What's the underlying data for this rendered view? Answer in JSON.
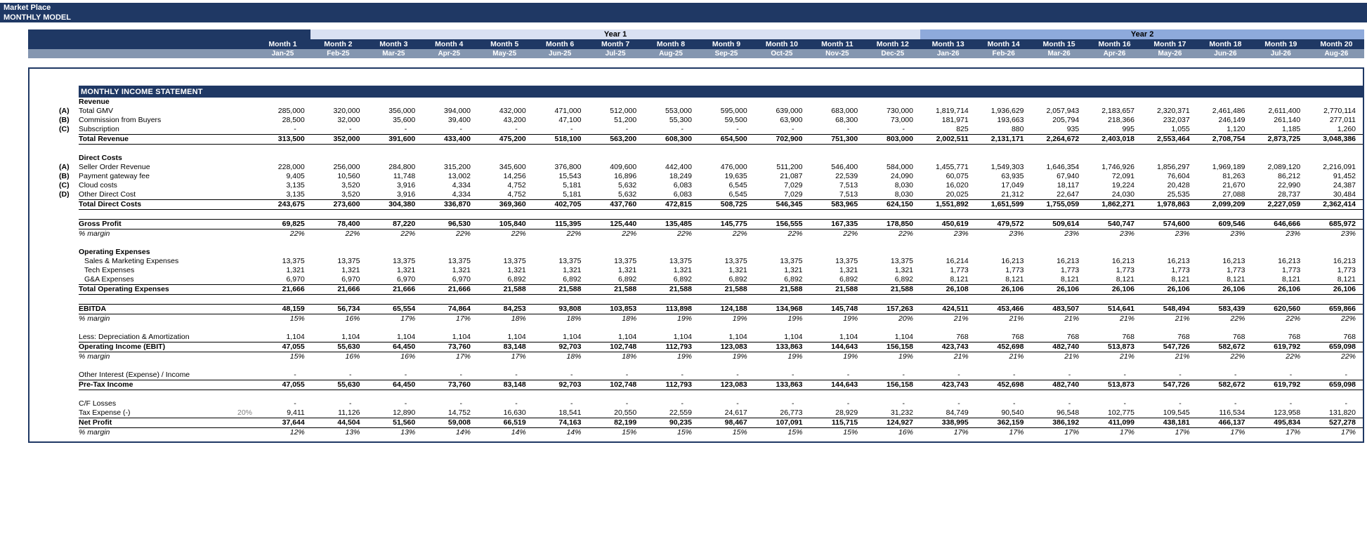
{
  "title": {
    "line1": "Market Place",
    "line2": "MONTHLY MODEL"
  },
  "colors": {
    "navy_header": "#1F3864",
    "year1_band": "#D9E1F2",
    "year2_band": "#8EAADB",
    "date_band": "#8496B0",
    "tax_rate_text": "#808080",
    "body_text": "#000000"
  },
  "header": {
    "year1_label": "Year 1",
    "year2_label": "Year 2",
    "months": [
      "Month 1",
      "Month 2",
      "Month 3",
      "Month 4",
      "Month 5",
      "Month 6",
      "Month 7",
      "Month 8",
      "Month 9",
      "Month 10",
      "Month 11",
      "Month 12",
      "Month 13",
      "Month 14",
      "Month 15",
      "Month 16",
      "Month 17",
      "Month 18",
      "Month 19",
      "Month 20"
    ],
    "dates": [
      "Jan-25",
      "Feb-25",
      "Mar-25",
      "Apr-25",
      "May-25",
      "Jun-25",
      "Jul-25",
      "Aug-25",
      "Sep-25",
      "Oct-25",
      "Nov-25",
      "Dec-25",
      "Jan-26",
      "Feb-26",
      "Mar-26",
      "Apr-26",
      "May-26",
      "Jun-26",
      "Jul-26",
      "Aug-26"
    ]
  },
  "statement": {
    "title": "MONTHLY INCOME STATEMENT",
    "rows": [
      {
        "type": "section",
        "label": "Revenue"
      },
      {
        "type": "item",
        "prefix": "(A)",
        "label": "Total GMV",
        "values": [
          "285,000",
          "320,000",
          "356,000",
          "394,000",
          "432,000",
          "471,000",
          "512,000",
          "553,000",
          "595,000",
          "639,000",
          "683,000",
          "730,000",
          "1,819,714",
          "1,936,629",
          "2,057,943",
          "2,183,657",
          "2,320,371",
          "2,461,486",
          "2,611,400",
          "2,770,114"
        ]
      },
      {
        "type": "item",
        "prefix": "(B)",
        "label": "Commission from Buyers",
        "values": [
          "28,500",
          "32,000",
          "35,600",
          "39,400",
          "43,200",
          "47,100",
          "51,200",
          "55,300",
          "59,500",
          "63,900",
          "68,300",
          "73,000",
          "181,971",
          "193,663",
          "205,794",
          "218,366",
          "232,037",
          "246,149",
          "261,140",
          "277,011"
        ]
      },
      {
        "type": "item",
        "prefix": "(C)",
        "label": "Subscription",
        "underline": true,
        "values": [
          "-",
          "-",
          "-",
          "-",
          "-",
          "-",
          "-",
          "-",
          "-",
          "-",
          "-",
          "-",
          "825",
          "880",
          "935",
          "995",
          "1,055",
          "1,120",
          "1,185",
          "1,260"
        ]
      },
      {
        "type": "total",
        "label": "Total Revenue",
        "values": [
          "313,500",
          "352,000",
          "391,600",
          "433,400",
          "475,200",
          "518,100",
          "563,200",
          "608,300",
          "654,500",
          "702,900",
          "751,300",
          "803,000",
          "2,002,511",
          "2,131,171",
          "2,264,672",
          "2,403,018",
          "2,553,464",
          "2,708,754",
          "2,873,725",
          "3,048,386"
        ]
      },
      {
        "type": "blank"
      },
      {
        "type": "section",
        "label": "Direct Costs"
      },
      {
        "type": "item",
        "prefix": "(A)",
        "label": "Seller Order Revenue",
        "values": [
          "228,000",
          "256,000",
          "284,800",
          "315,200",
          "345,600",
          "376,800",
          "409,600",
          "442,400",
          "476,000",
          "511,200",
          "546,400",
          "584,000",
          "1,455,771",
          "1,549,303",
          "1,646,354",
          "1,746,926",
          "1,856,297",
          "1,969,189",
          "2,089,120",
          "2,216,091"
        ]
      },
      {
        "type": "item",
        "prefix": "(B)",
        "label": "Payment gateway fee",
        "values": [
          "9,405",
          "10,560",
          "11,748",
          "13,002",
          "14,256",
          "15,543",
          "16,896",
          "18,249",
          "19,635",
          "21,087",
          "22,539",
          "24,090",
          "60,075",
          "63,935",
          "67,940",
          "72,091",
          "76,604",
          "81,263",
          "86,212",
          "91,452"
        ]
      },
      {
        "type": "item",
        "prefix": "(C)",
        "label": "Cloud costs",
        "values": [
          "3,135",
          "3,520",
          "3,916",
          "4,334",
          "4,752",
          "5,181",
          "5,632",
          "6,083",
          "6,545",
          "7,029",
          "7,513",
          "8,030",
          "16,020",
          "17,049",
          "18,117",
          "19,224",
          "20,428",
          "21,670",
          "22,990",
          "24,387"
        ]
      },
      {
        "type": "item",
        "prefix": "(D)",
        "label": "Other Direct Cost",
        "underline": true,
        "values": [
          "3,135",
          "3,520",
          "3,916",
          "4,334",
          "4,752",
          "5,181",
          "5,632",
          "6,083",
          "6,545",
          "7,029",
          "7,513",
          "8,030",
          "20,025",
          "21,312",
          "22,647",
          "24,030",
          "25,535",
          "27,088",
          "28,737",
          "30,484"
        ]
      },
      {
        "type": "total",
        "label": "Total Direct Costs",
        "values": [
          "243,675",
          "273,600",
          "304,380",
          "336,870",
          "369,360",
          "402,705",
          "437,760",
          "472,815",
          "508,725",
          "546,345",
          "583,965",
          "624,150",
          "1,551,892",
          "1,651,599",
          "1,755,059",
          "1,862,271",
          "1,978,863",
          "2,099,209",
          "2,227,059",
          "2,362,414"
        ]
      },
      {
        "type": "blank"
      },
      {
        "type": "total",
        "label": "Gross Profit",
        "values": [
          "69,825",
          "78,400",
          "87,220",
          "96,530",
          "105,840",
          "115,395",
          "125,440",
          "135,485",
          "145,775",
          "156,555",
          "167,335",
          "178,850",
          "450,619",
          "479,572",
          "509,614",
          "540,747",
          "574,600",
          "609,546",
          "646,666",
          "685,972"
        ]
      },
      {
        "type": "margin",
        "label": "% margin",
        "values": [
          "22%",
          "22%",
          "22%",
          "22%",
          "22%",
          "22%",
          "22%",
          "22%",
          "22%",
          "22%",
          "22%",
          "22%",
          "23%",
          "23%",
          "23%",
          "23%",
          "23%",
          "23%",
          "23%",
          "23%"
        ]
      },
      {
        "type": "blank"
      },
      {
        "type": "section",
        "label": "Operating Expenses"
      },
      {
        "type": "item",
        "label": "Sales & Marketing Expenses",
        "indent": true,
        "values": [
          "13,375",
          "13,375",
          "13,375",
          "13,375",
          "13,375",
          "13,375",
          "13,375",
          "13,375",
          "13,375",
          "13,375",
          "13,375",
          "13,375",
          "16,214",
          "16,213",
          "16,213",
          "16,213",
          "16,213",
          "16,213",
          "16,213",
          "16,213"
        ]
      },
      {
        "type": "item",
        "label": "Tech Expenses",
        "indent": true,
        "values": [
          "1,321",
          "1,321",
          "1,321",
          "1,321",
          "1,321",
          "1,321",
          "1,321",
          "1,321",
          "1,321",
          "1,321",
          "1,321",
          "1,321",
          "1,773",
          "1,773",
          "1,773",
          "1,773",
          "1,773",
          "1,773",
          "1,773",
          "1,773"
        ]
      },
      {
        "type": "item",
        "label": "G&A Expenses",
        "indent": true,
        "underline": true,
        "values": [
          "6,970",
          "6,970",
          "6,970",
          "6,970",
          "6,892",
          "6,892",
          "6,892",
          "6,892",
          "6,892",
          "6,892",
          "6,892",
          "6,892",
          "8,121",
          "8,121",
          "8,121",
          "8,121",
          "8,121",
          "8,121",
          "8,121",
          "8,121"
        ]
      },
      {
        "type": "total",
        "label": "Total Operating Expenses",
        "values": [
          "21,666",
          "21,666",
          "21,666",
          "21,666",
          "21,588",
          "21,588",
          "21,588",
          "21,588",
          "21,588",
          "21,588",
          "21,588",
          "21,588",
          "26,108",
          "26,106",
          "26,106",
          "26,106",
          "26,106",
          "26,106",
          "26,106",
          "26,106"
        ]
      },
      {
        "type": "blank"
      },
      {
        "type": "total",
        "label": "EBITDA",
        "values": [
          "48,159",
          "56,734",
          "65,554",
          "74,864",
          "84,253",
          "93,808",
          "103,853",
          "113,898",
          "124,188",
          "134,968",
          "145,748",
          "157,263",
          "424,511",
          "453,466",
          "483,507",
          "514,641",
          "548,494",
          "583,439",
          "620,560",
          "659,866"
        ]
      },
      {
        "type": "margin",
        "label": "% margin",
        "values": [
          "15%",
          "16%",
          "17%",
          "17%",
          "18%",
          "18%",
          "18%",
          "19%",
          "19%",
          "19%",
          "19%",
          "20%",
          "21%",
          "21%",
          "21%",
          "21%",
          "21%",
          "22%",
          "22%",
          "22%"
        ]
      },
      {
        "type": "blank"
      },
      {
        "type": "item",
        "label": "Less: Depreciation & Amortization",
        "underline": true,
        "values": [
          "1,104",
          "1,104",
          "1,104",
          "1,104",
          "1,104",
          "1,104",
          "1,104",
          "1,104",
          "1,104",
          "1,104",
          "1,104",
          "1,104",
          "768",
          "768",
          "768",
          "768",
          "768",
          "768",
          "768",
          "768"
        ]
      },
      {
        "type": "total",
        "label": "Operating Income (EBIT)",
        "values": [
          "47,055",
          "55,630",
          "64,450",
          "73,760",
          "83,148",
          "92,703",
          "102,748",
          "112,793",
          "123,083",
          "133,863",
          "144,643",
          "156,158",
          "423,743",
          "452,698",
          "482,740",
          "513,873",
          "547,726",
          "582,672",
          "619,792",
          "659,098"
        ]
      },
      {
        "type": "margin",
        "label": "% margin",
        "values": [
          "15%",
          "16%",
          "16%",
          "17%",
          "17%",
          "18%",
          "18%",
          "19%",
          "19%",
          "19%",
          "19%",
          "19%",
          "21%",
          "21%",
          "21%",
          "21%",
          "21%",
          "22%",
          "22%",
          "22%"
        ]
      },
      {
        "type": "blank"
      },
      {
        "type": "item",
        "label": "Other Interest (Expense) / Income",
        "underline": true,
        "values": [
          "-",
          "-",
          "-",
          "-",
          "-",
          "-",
          "-",
          "-",
          "-",
          "-",
          "-",
          "-",
          "-",
          "-",
          "-",
          "-",
          "-",
          "-",
          "-",
          "-"
        ]
      },
      {
        "type": "total",
        "label": "Pre-Tax Income",
        "values": [
          "47,055",
          "55,630",
          "64,450",
          "73,760",
          "83,148",
          "92,703",
          "102,748",
          "112,793",
          "123,083",
          "133,863",
          "144,643",
          "156,158",
          "423,743",
          "452,698",
          "482,740",
          "513,873",
          "547,726",
          "582,672",
          "619,792",
          "659,098"
        ]
      },
      {
        "type": "blank"
      },
      {
        "type": "item",
        "label": "C/F Losses",
        "values": [
          "-",
          "-",
          "-",
          "-",
          "-",
          "-",
          "-",
          "-",
          "-",
          "-",
          "-",
          "-",
          "-",
          "-",
          "-",
          "-",
          "-",
          "-",
          "-",
          "-"
        ]
      },
      {
        "type": "item",
        "label": "Tax Expense (-)",
        "rate": "20%",
        "underline": true,
        "values": [
          "9,411",
          "11,126",
          "12,890",
          "14,752",
          "16,630",
          "18,541",
          "20,550",
          "22,559",
          "24,617",
          "26,773",
          "28,929",
          "31,232",
          "84,749",
          "90,540",
          "96,548",
          "102,775",
          "109,545",
          "116,534",
          "123,958",
          "131,820"
        ]
      },
      {
        "type": "total",
        "label": "Net Profit",
        "values": [
          "37,644",
          "44,504",
          "51,560",
          "59,008",
          "66,519",
          "74,163",
          "82,199",
          "90,235",
          "98,467",
          "107,091",
          "115,715",
          "124,927",
          "338,995",
          "362,159",
          "386,192",
          "411,099",
          "438,181",
          "466,137",
          "495,834",
          "527,278"
        ]
      },
      {
        "type": "margin",
        "label": "% margin",
        "values": [
          "12%",
          "13%",
          "13%",
          "14%",
          "14%",
          "14%",
          "15%",
          "15%",
          "15%",
          "15%",
          "15%",
          "16%",
          "17%",
          "17%",
          "17%",
          "17%",
          "17%",
          "17%",
          "17%",
          "17%"
        ]
      }
    ]
  }
}
